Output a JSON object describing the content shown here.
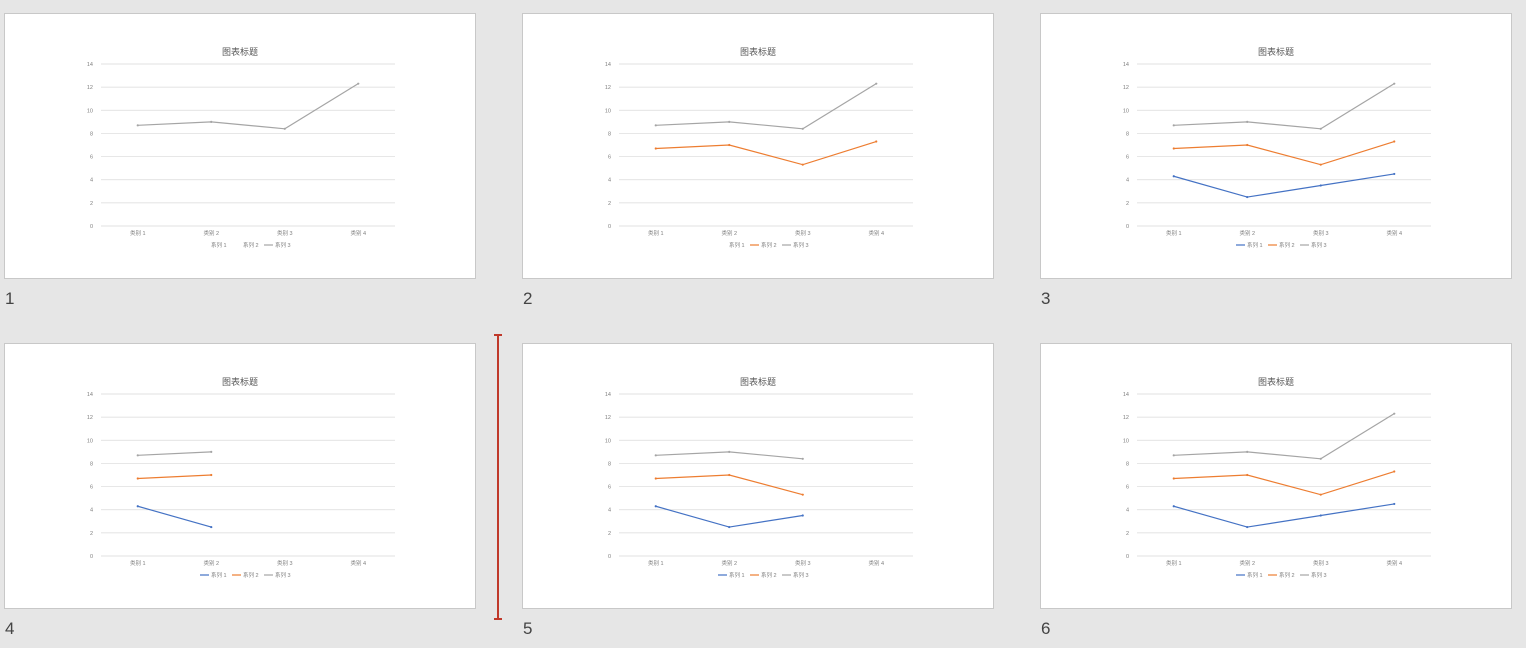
{
  "slides": [
    {
      "number": "1",
      "reveal": {
        "系列 1": 0,
        "系列 2": 0,
        "系列 3": 4
      },
      "visible_series": [
        "系列 3"
      ]
    },
    {
      "number": "2",
      "reveal": {
        "系列 1": 0,
        "系列 2": 4,
        "系列 3": 4
      },
      "visible_series": [
        "系列 2",
        "系列 3"
      ]
    },
    {
      "number": "3",
      "reveal": {
        "系列 1": 4,
        "系列 2": 4,
        "系列 3": 4
      },
      "visible_series": [
        "系列 1",
        "系列 2",
        "系列 3"
      ]
    },
    {
      "number": "4",
      "reveal": {
        "系列 1": 2,
        "系列 2": 2,
        "系列 3": 2
      },
      "visible_series": [
        "系列 1",
        "系列 2",
        "系列 3"
      ]
    },
    {
      "number": "5",
      "reveal": {
        "系列 1": 3,
        "系列 2": 3,
        "系列 3": 3
      },
      "visible_series": [
        "系列 1",
        "系列 2",
        "系列 3"
      ]
    },
    {
      "number": "6",
      "reveal": {
        "系列 1": 4,
        "系列 2": 4,
        "系列 3": 4
      },
      "visible_series": [
        "系列 1",
        "系列 2",
        "系列 3"
      ]
    }
  ],
  "chart_data": {
    "type": "line",
    "title": "图表标题",
    "categories": [
      "类别 1",
      "类别 2",
      "类别 3",
      "类别 4"
    ],
    "yticks": [
      "0",
      "2",
      "4",
      "6",
      "8",
      "10",
      "12",
      "14"
    ],
    "ylim": [
      0,
      14
    ],
    "grid": true,
    "legend": "bottom",
    "series": [
      {
        "name": "系列 1",
        "color": "#4472c4",
        "values": [
          4.3,
          2.5,
          3.5,
          4.5
        ]
      },
      {
        "name": "系列 2",
        "color": "#ed7d31",
        "values": [
          6.7,
          7.0,
          5.3,
          7.3
        ]
      },
      {
        "name": "系列 3",
        "color": "#a5a5a5",
        "values": [
          8.7,
          9.0,
          8.4,
          12.3
        ]
      }
    ]
  }
}
